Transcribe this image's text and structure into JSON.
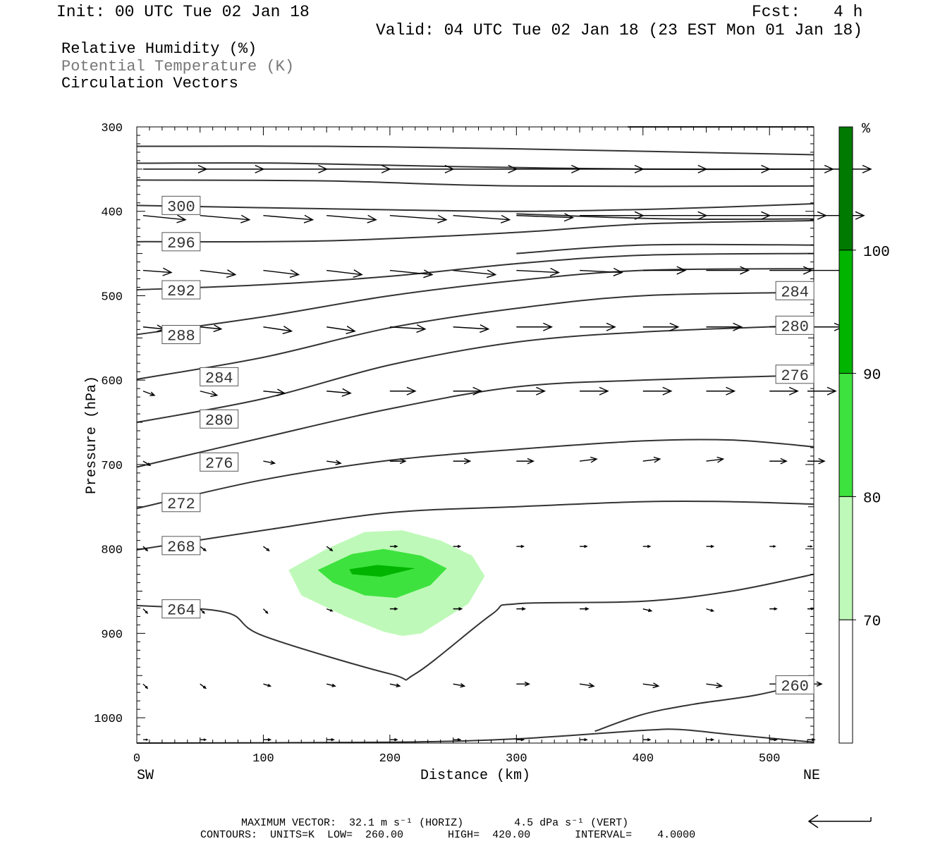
{
  "header": {
    "init": "Init: 00 UTC Tue 02 Jan 18",
    "fcst_label": "Fcst:",
    "fcst_value": "4 h",
    "valid": "Valid: 04 UTC Tue 02 Jan 18 (23 EST Mon 01 Jan 18)"
  },
  "legend": {
    "line1": "Relative Humidity (%)",
    "line2": "Potential Temperature (K)",
    "line3": "Circulation Vectors"
  },
  "footer": {
    "line1": "MAXIMUM VECTOR:  32.1 m s⁻¹ (HORIZ)        4.5 dPa s⁻¹ (VERT)",
    "line2": "CONTOURS:  UNITS=K  LOW=  260.00       HIGH=  420.00       INTERVAL=    4.0000"
  },
  "colors": {
    "rh70": "#bff9b9",
    "rh80": "#3ee23e",
    "rh90": "#00b400",
    "rh100": "#007a00",
    "contour": "#333333",
    "gray_text": "#777777"
  },
  "chart_data": {
    "type": "cross-section",
    "xlabel": "Distance (km)",
    "ylabel": "Pressure (hPa)",
    "xlim": [
      0,
      535
    ],
    "ylim": [
      1030,
      300
    ],
    "x_ticks": [
      "0",
      "100",
      "200",
      "300",
      "400",
      "500"
    ],
    "y_ticks": [
      "300",
      "400",
      "500",
      "600",
      "700",
      "800",
      "900",
      "1000"
    ],
    "left_end_label": "SW",
    "right_end_label": "NE",
    "colorbar": {
      "unit": "%",
      "levels": [
        "70",
        "80",
        "90",
        "100"
      ],
      "colors": [
        "#ffffff",
        "#bff9b9",
        "#3ee23e",
        "#00b400",
        "#007a00"
      ]
    },
    "rh_regions": [
      {
        "level": 70,
        "points": [
          [
            120,
            825
          ],
          [
            150,
            800
          ],
          [
            180,
            780
          ],
          [
            210,
            778
          ],
          [
            240,
            790
          ],
          [
            265,
            808
          ],
          [
            275,
            832
          ],
          [
            262,
            865
          ],
          [
            225,
            900
          ],
          [
            210,
            903
          ],
          [
            195,
            898
          ],
          [
            165,
            880
          ],
          [
            130,
            855
          ]
        ]
      },
      {
        "level": 80,
        "points": [
          [
            143,
            825
          ],
          [
            170,
            806
          ],
          [
            195,
            800
          ],
          [
            225,
            808
          ],
          [
            245,
            823
          ],
          [
            232,
            843
          ],
          [
            205,
            858
          ],
          [
            180,
            855
          ],
          [
            155,
            840
          ]
        ]
      },
      {
        "level": 90,
        "points": [
          [
            168,
            824
          ],
          [
            190,
            819
          ],
          [
            220,
            823
          ],
          [
            193,
            833
          ],
          [
            170,
            830
          ]
        ]
      }
    ],
    "theta_contours": [
      {
        "label": "",
        "points": [
          [
            388,
            300
          ],
          [
            535,
            300
          ]
        ]
      },
      {
        "label": "",
        "points": [
          [
            0,
            323
          ],
          [
            150,
            323
          ],
          [
            300,
            326
          ],
          [
            535,
            333
          ]
        ]
      },
      {
        "label": "",
        "points": [
          [
            0,
            343
          ],
          [
            120,
            343
          ],
          [
            250,
            347
          ],
          [
            400,
            350
          ],
          [
            535,
            350
          ]
        ]
      },
      {
        "label": "",
        "points": [
          [
            0,
            363
          ],
          [
            150,
            364
          ],
          [
            300,
            370
          ],
          [
            535,
            370
          ]
        ]
      },
      {
        "label": "300",
        "label_at": [
          25,
          393
        ],
        "points": [
          [
            0,
            393
          ],
          [
            150,
            397
          ],
          [
            300,
            400
          ],
          [
            420,
            397
          ],
          [
            535,
            391
          ]
        ]
      },
      {
        "label": "",
        "points": [
          [
            300,
            403
          ],
          [
            420,
            409
          ],
          [
            535,
            409
          ]
        ]
      },
      {
        "label": "296",
        "label_at": [
          25,
          436
        ],
        "points": [
          [
            0,
            436
          ],
          [
            150,
            435
          ],
          [
            300,
            425
          ],
          [
            400,
            415
          ],
          [
            535,
            411
          ]
        ]
      },
      {
        "label": "",
        "points": [
          [
            300,
            450
          ],
          [
            400,
            440
          ],
          [
            535,
            440
          ]
        ]
      },
      {
        "label": "292",
        "label_at": [
          25,
          493
        ],
        "points": [
          [
            0,
            493
          ],
          [
            100,
            487
          ],
          [
            200,
            477
          ],
          [
            300,
            462
          ],
          [
            400,
            452
          ],
          [
            535,
            450
          ]
        ]
      },
      {
        "label": "288",
        "label_at": [
          25,
          546
        ],
        "points": [
          [
            0,
            546
          ],
          [
            100,
            525
          ],
          [
            200,
            500
          ],
          [
            300,
            482
          ],
          [
            400,
            470
          ],
          [
            535,
            468
          ]
        ]
      },
      {
        "label": "284",
        "label_at": [
          55,
          596
        ],
        "points": [
          [
            0,
            599
          ],
          [
            100,
            573
          ],
          [
            200,
            538
          ],
          [
            300,
            515
          ],
          [
            400,
            500
          ],
          [
            535,
            496
          ]
        ]
      },
      {
        "label": "284",
        "label_at": [
          510,
          494
        ],
        "points": [
          [
            510,
            494
          ],
          [
            535,
            494
          ]
        ]
      },
      {
        "label": "280",
        "label_at": [
          55,
          646
        ],
        "points": [
          [
            0,
            650
          ],
          [
            100,
            622
          ],
          [
            200,
            582
          ],
          [
            300,
            555
          ],
          [
            400,
            543
          ],
          [
            535,
            535
          ]
        ]
      },
      {
        "label": "280",
        "label_at": [
          510,
          535
        ],
        "points": [
          [
            510,
            535
          ],
          [
            535,
            535
          ]
        ]
      },
      {
        "label": "276",
        "label_at": [
          55,
          697
        ],
        "points": [
          [
            0,
            703
          ],
          [
            100,
            668
          ],
          [
            200,
            634
          ],
          [
            300,
            608
          ],
          [
            400,
            600
          ],
          [
            535,
            594
          ]
        ]
      },
      {
        "label": "276",
        "label_at": [
          510,
          593
        ],
        "points": [
          [
            510,
            593
          ],
          [
            535,
            593
          ]
        ]
      },
      {
        "label": "272",
        "label_at": [
          25,
          745
        ],
        "points": [
          [
            0,
            752
          ],
          [
            100,
            718
          ],
          [
            200,
            695
          ],
          [
            300,
            682
          ],
          [
            400,
            672
          ],
          [
            470,
            671
          ],
          [
            535,
            679
          ]
        ]
      },
      {
        "label": "268",
        "label_at": [
          25,
          796
        ],
        "points": [
          [
            0,
            801
          ],
          [
            100,
            778
          ],
          [
            200,
            757
          ],
          [
            300,
            750
          ],
          [
            400,
            744
          ],
          [
            470,
            744
          ],
          [
            535,
            747
          ]
        ]
      },
      {
        "label": "264",
        "label_at": [
          25,
          871
        ],
        "points": [
          [
            0,
            867
          ],
          [
            70,
            875
          ],
          [
            100,
            903
          ],
          [
            200,
            948
          ],
          [
            220,
            948
          ],
          [
            280,
            878
          ],
          [
            300,
            865
          ],
          [
            400,
            862
          ],
          [
            470,
            850
          ],
          [
            535,
            830
          ]
        ]
      },
      {
        "label": "260",
        "label_at": [
          510,
          961
        ],
        "points": [
          [
            362,
            1016
          ],
          [
            400,
            996
          ],
          [
            440,
            984
          ],
          [
            490,
            973
          ],
          [
            535,
            957
          ]
        ]
      },
      {
        "label": "",
        "points": [
          [
            0,
            1030
          ],
          [
            200,
            1029
          ],
          [
            300,
            1025
          ],
          [
            400,
            1015
          ],
          [
            430,
            1014
          ],
          [
            470,
            1020
          ],
          [
            535,
            1029
          ]
        ]
      }
    ],
    "vectors": {
      "x": [
        5,
        50,
        100,
        150,
        200,
        250,
        300,
        350,
        400,
        450,
        500,
        530
      ],
      "rows": [
        {
          "p": 350,
          "u": [
            4.5,
            4.5,
            4.5,
            4.5,
            4.5,
            4.5,
            4.5,
            4.5,
            4.5,
            4.5,
            4.5,
            4.5
          ],
          "w": [
            0,
            0,
            0,
            0,
            0,
            0,
            0,
            0,
            0,
            0,
            0,
            0
          ]
        },
        {
          "p": 405,
          "u": [
            3,
            3.5,
            3.5,
            3.5,
            4,
            4,
            4,
            4.5,
            4.5,
            4.5,
            4,
            4
          ],
          "w": [
            -1,
            -1,
            -1,
            -1,
            -1,
            -1,
            -0.5,
            0,
            0,
            0,
            0,
            0
          ]
        },
        {
          "p": 470,
          "u": [
            2,
            2.5,
            2.5,
            2.5,
            3,
            3,
            3,
            3,
            3,
            3,
            3,
            3
          ],
          "w": [
            -0.5,
            -1,
            -1,
            -1,
            -1,
            -1,
            -0.5,
            -0.5,
            0,
            0,
            0,
            0
          ]
        },
        {
          "p": 537,
          "u": [
            1.5,
            1.5,
            2,
            2,
            2.5,
            2.5,
            2.5,
            2.5,
            2.5,
            2.5,
            2.5,
            2.5
          ],
          "w": [
            -0.5,
            -0.5,
            -1,
            -1,
            -0.5,
            -0.5,
            0,
            0,
            0,
            0,
            0,
            0
          ]
        },
        {
          "p": 613,
          "u": [
            0.8,
            1.2,
            1.5,
            1.7,
            1.8,
            2,
            2,
            2,
            2,
            2,
            2,
            2
          ],
          "w": [
            -1,
            -1,
            -0.5,
            -0.5,
            0,
            0,
            0,
            0,
            0,
            0,
            0,
            0
          ]
        },
        {
          "p": 696,
          "u": [
            0.5,
            0.7,
            0.8,
            1,
            1.1,
            1.2,
            1.2,
            1.2,
            1.2,
            1.2,
            1.2,
            1.2
          ],
          "w": [
            -1,
            -1,
            -0.5,
            -0.5,
            0,
            0,
            0,
            0.5,
            0.5,
            0.5,
            0,
            0
          ]
        },
        {
          "p": 797,
          "u": [
            0.3,
            0.4,
            0.4,
            0.4,
            0.5,
            0.5,
            0.5,
            0.5,
            0.5,
            0.5,
            0.4,
            0.3
          ],
          "w": [
            -1,
            -1,
            -1,
            -1,
            0,
            0,
            0,
            0,
            0,
            0,
            0,
            0
          ]
        },
        {
          "p": 871,
          "u": [
            0.3,
            0.3,
            0.3,
            0.4,
            0.5,
            0.6,
            0.6,
            0.6,
            0.6,
            0.5,
            0.5,
            0.4
          ],
          "w": [
            -1,
            -1,
            -1,
            -0.5,
            0,
            0,
            0,
            0,
            -0.5,
            -0.5,
            0,
            0
          ]
        },
        {
          "p": 960,
          "u": [
            0.3,
            0.4,
            0.5,
            0.6,
            0.7,
            0.8,
            0.9,
            1,
            1.1,
            1.1,
            1.1,
            1
          ],
          "w": [
            -1,
            -1,
            -0.5,
            -0.5,
            -0.5,
            -0.5,
            0,
            -0.5,
            -0.5,
            -0.5,
            0,
            0
          ]
        },
        {
          "p": 1026,
          "u": [
            0.3,
            0.4,
            0.5,
            0.5,
            0.5,
            0.5,
            0.5,
            0.5,
            0.5,
            0.5,
            0.5,
            0.5
          ],
          "w": [
            0,
            0,
            0,
            0,
            0,
            0,
            0,
            0,
            0,
            0,
            0,
            0
          ]
        }
      ]
    }
  }
}
